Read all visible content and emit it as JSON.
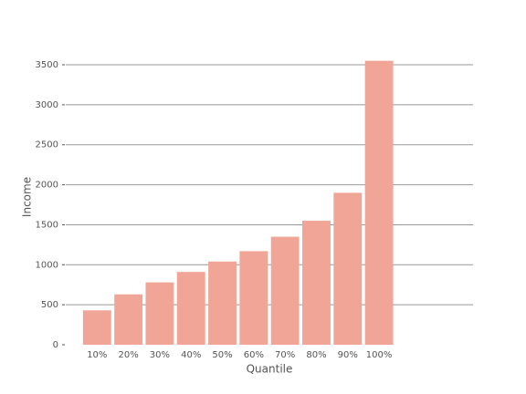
{
  "chart_data": {
    "type": "bar",
    "xlabel": "Quantile",
    "ylabel": "Income",
    "categories": [
      "10%",
      "20%",
      "30%",
      "40%",
      "50%",
      "60%",
      "70%",
      "80%",
      "90%",
      "100%"
    ],
    "values": [
      430,
      630,
      780,
      910,
      1040,
      1170,
      1350,
      1550,
      1900,
      3550
    ],
    "color": "#f1a596",
    "ylim": [
      0,
      3700
    ],
    "yticks": [
      0,
      500,
      1000,
      1500,
      2000,
      2500,
      3000,
      3500
    ],
    "grid": true
  }
}
